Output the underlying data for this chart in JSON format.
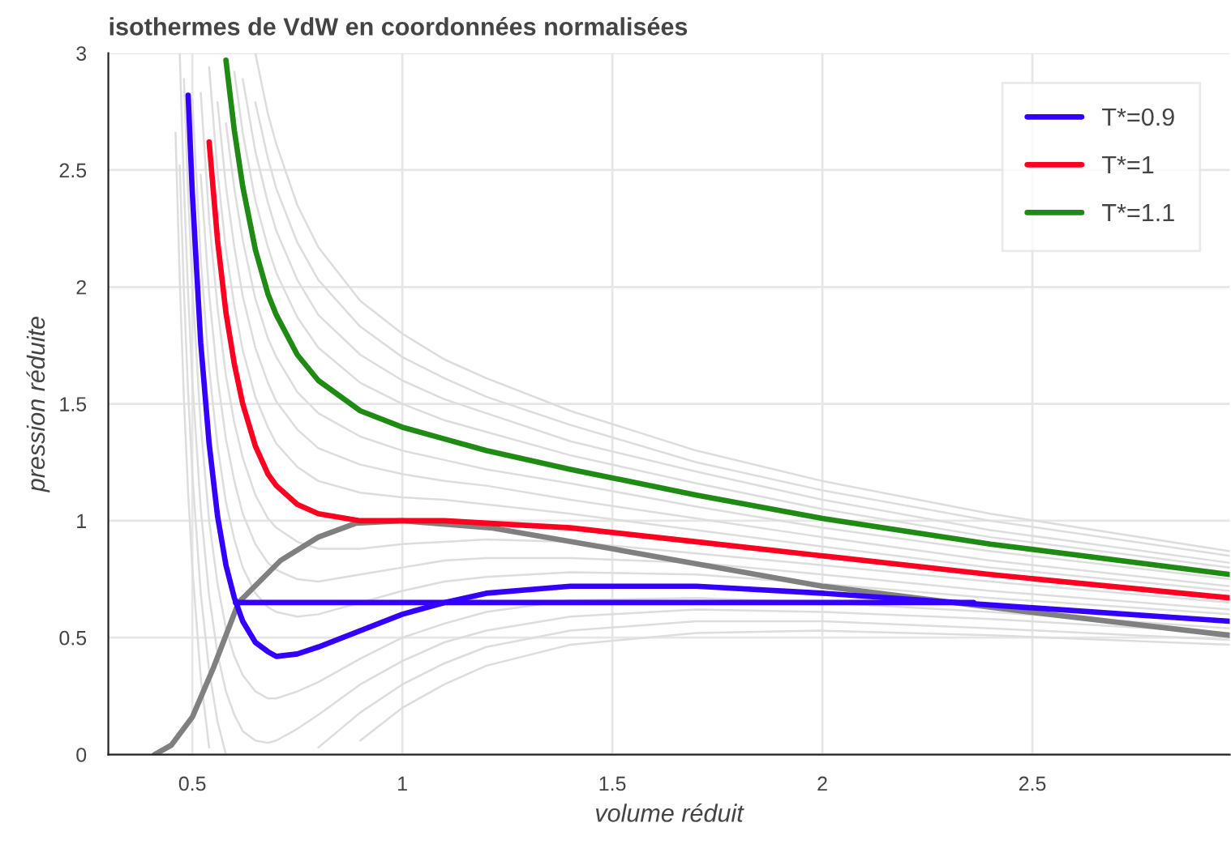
{
  "chart_data": {
    "type": "line",
    "title": "isothermes de VdW en coordonnées normalisées",
    "xlabel": "volume réduit",
    "ylabel": "pression réduite",
    "x": [
      0.46,
      0.47,
      0.48,
      0.49,
      0.5,
      0.52,
      0.54,
      0.56,
      0.58,
      0.6,
      0.62,
      0.65,
      0.68,
      0.7,
      0.75,
      0.8,
      0.9,
      1.0,
      1.1,
      1.2,
      1.4,
      1.7,
      2.0,
      2.4,
      2.97
    ],
    "xlim": [
      0.3,
      2.97
    ],
    "ylim": [
      0,
      3
    ],
    "xticks": [
      0.5,
      1,
      1.5,
      2,
      2.5
    ],
    "yticks": [
      0,
      0.5,
      1,
      1.5,
      2,
      2.5,
      3
    ],
    "grid": true,
    "legend": "top right",
    "series": [
      {
        "color": "#dddddd",
        "values": [
          2.66,
          2.03,
          1.52,
          1.12,
          0.8,
          0.33,
          0.03,
          null,
          null,
          null,
          null,
          null,
          null,
          null,
          null,
          null,
          0.06,
          0.2,
          0.3,
          0.38,
          0.47,
          0.52,
          0.53,
          0.51,
          0.47
        ]
      },
      {
        "color": "#dddddd",
        "values": [
          null,
          2.52,
          1.98,
          1.55,
          1.2,
          0.69,
          0.36,
          0.14,
          0.0,
          null,
          null,
          null,
          null,
          null,
          null,
          0.03,
          0.18,
          0.3,
          0.39,
          0.46,
          0.53,
          0.57,
          0.57,
          0.54,
          0.49
        ]
      },
      {
        "color": "#dddddd",
        "values": [
          null,
          3.0,
          2.43,
          1.97,
          1.6,
          1.05,
          0.68,
          0.43,
          0.27,
          0.17,
          0.1,
          0.06,
          0.05,
          0.06,
          0.11,
          0.17,
          0.3,
          0.4,
          0.48,
          0.53,
          0.59,
          0.62,
          0.61,
          0.58,
          0.52
        ]
      },
      {
        "color": "#dddddd",
        "values": [
          null,
          null,
          2.89,
          2.4,
          2.0,
          1.41,
          1.0,
          0.73,
          0.54,
          0.42,
          0.34,
          0.27,
          0.24,
          0.24,
          0.27,
          0.31,
          0.41,
          0.5,
          0.56,
          0.61,
          0.66,
          0.67,
          0.65,
          0.61,
          0.54
        ]
      },
      {
        "color": "#dddddd",
        "values": [
          null,
          null,
          null,
          null,
          2.8,
          2.12,
          1.65,
          1.32,
          1.08,
          0.92,
          0.8,
          0.69,
          0.63,
          0.61,
          0.59,
          0.6,
          0.65,
          0.7,
          0.74,
          0.76,
          0.78,
          0.77,
          0.73,
          0.67,
          0.6
        ]
      },
      {
        "color": "#dddddd",
        "values": [
          null,
          null,
          null,
          null,
          null,
          2.48,
          1.97,
          1.61,
          1.35,
          1.17,
          1.03,
          0.9,
          0.82,
          0.79,
          0.75,
          0.74,
          0.77,
          0.8,
          0.83,
          0.84,
          0.84,
          0.82,
          0.77,
          0.7,
          0.62
        ]
      },
      {
        "color": "#dddddd",
        "values": [
          null,
          null,
          null,
          null,
          null,
          2.83,
          2.29,
          1.91,
          1.62,
          1.42,
          1.27,
          1.11,
          1.01,
          0.97,
          0.91,
          0.88,
          0.88,
          0.9,
          0.91,
          0.92,
          0.91,
          0.86,
          0.81,
          0.74,
          0.65
        ]
      },
      {
        "color": "#dddddd",
        "values": [
          null,
          null,
          null,
          null,
          null,
          null,
          2.94,
          2.49,
          2.16,
          1.92,
          1.73,
          1.53,
          1.4,
          1.33,
          1.23,
          1.17,
          1.12,
          1.1,
          1.09,
          1.07,
          1.03,
          0.96,
          0.89,
          0.8,
          0.7
        ]
      },
      {
        "color": "#dddddd",
        "values": [
          null,
          null,
          null,
          null,
          null,
          null,
          null,
          2.79,
          2.43,
          2.17,
          1.96,
          1.74,
          1.59,
          1.51,
          1.39,
          1.31,
          1.24,
          1.2,
          1.17,
          1.15,
          1.09,
          1.01,
          0.93,
          0.83,
          0.72
        ]
      },
      {
        "color": "#dddddd",
        "values": [
          null,
          null,
          null,
          null,
          null,
          null,
          null,
          null,
          2.7,
          2.42,
          2.2,
          1.95,
          1.78,
          1.7,
          1.55,
          1.46,
          1.36,
          1.3,
          1.26,
          1.22,
          1.16,
          1.06,
          0.97,
          0.87,
          0.75
        ]
      },
      {
        "color": "#dddddd",
        "values": [
          null,
          null,
          null,
          null,
          null,
          null,
          null,
          null,
          null,
          2.92,
          2.66,
          2.37,
          2.17,
          2.06,
          1.87,
          1.74,
          1.59,
          1.5,
          1.43,
          1.38,
          1.28,
          1.16,
          1.05,
          0.93,
          0.8
        ]
      },
      {
        "color": "#dddddd",
        "values": [
          null,
          null,
          null,
          null,
          null,
          null,
          null,
          null,
          null,
          null,
          2.89,
          2.58,
          2.36,
          2.24,
          2.03,
          1.88,
          1.71,
          1.6,
          1.52,
          1.46,
          1.34,
          1.21,
          1.09,
          0.96,
          0.82
        ]
      },
      {
        "color": "#dddddd",
        "values": [
          null,
          null,
          null,
          null,
          null,
          null,
          null,
          null,
          null,
          null,
          null,
          2.79,
          2.55,
          2.42,
          2.19,
          2.03,
          1.83,
          1.7,
          1.61,
          1.53,
          1.41,
          1.25,
          1.13,
          1.0,
          0.85
        ]
      },
      {
        "color": "#dddddd",
        "values": [
          null,
          null,
          null,
          null,
          null,
          null,
          null,
          null,
          null,
          null,
          null,
          3.0,
          2.74,
          2.61,
          2.35,
          2.17,
          1.94,
          1.8,
          1.69,
          1.61,
          1.47,
          1.3,
          1.17,
          1.03,
          0.87
        ]
      },
      {
        "color": "#808080",
        "x": [
          0.41,
          0.45,
          0.5,
          0.55,
          0.61,
          0.71,
          0.8,
          0.89,
          1.0,
          1.21,
          1.5,
          2.0,
          2.49,
          2.97
        ],
        "values": [
          0,
          0.04,
          0.16,
          0.37,
          0.65,
          0.83,
          0.93,
          0.99,
          1.0,
          0.97,
          0.88,
          0.72,
          0.61,
          0.51
        ]
      },
      {
        "color": "#3300ff",
        "x": [
          0.603,
          2.36
        ],
        "values": [
          0.65,
          0.65
        ]
      },
      {
        "name": "T*=0.9",
        "color": "#3300ff",
        "values": [
          null,
          null,
          null,
          2.82,
          2.4,
          1.76,
          1.33,
          1.02,
          0.81,
          0.67,
          0.57,
          0.48,
          0.44,
          0.42,
          0.43,
          0.46,
          0.53,
          0.6,
          0.65,
          0.69,
          0.72,
          0.72,
          0.69,
          0.64,
          0.57
        ]
      },
      {
        "name": "T*=1",
        "color": "#ff0020",
        "values": [
          null,
          null,
          null,
          null,
          null,
          null,
          2.62,
          2.2,
          1.89,
          1.67,
          1.5,
          1.32,
          1.2,
          1.15,
          1.07,
          1.03,
          1.0,
          1.0,
          1.0,
          0.99,
          0.97,
          0.91,
          0.85,
          0.77,
          0.67
        ]
      },
      {
        "name": "T*=1.1",
        "color": "#1f8a14",
        "values": [
          null,
          null,
          null,
          null,
          null,
          null,
          null,
          null,
          2.97,
          2.67,
          2.43,
          2.16,
          1.97,
          1.88,
          1.71,
          1.6,
          1.47,
          1.4,
          1.35,
          1.3,
          1.22,
          1.11,
          1.01,
          0.9,
          0.77
        ]
      }
    ]
  }
}
